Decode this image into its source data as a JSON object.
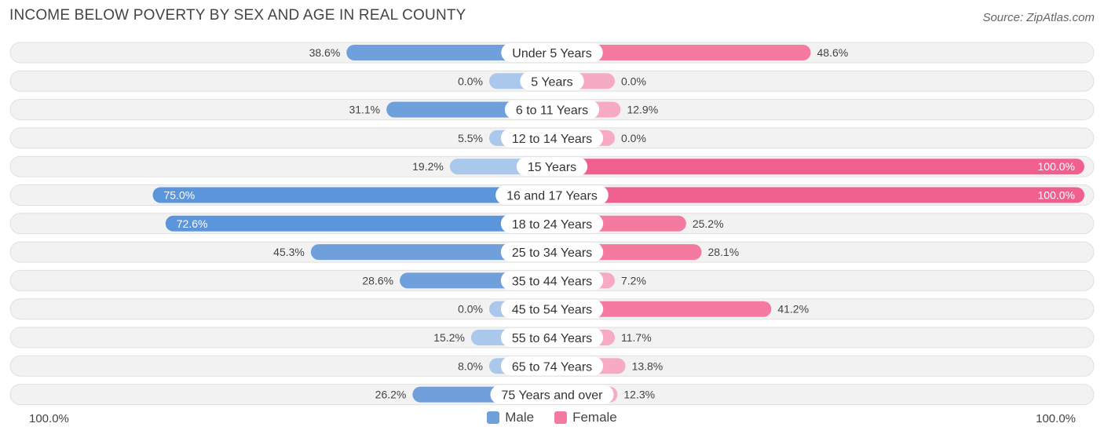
{
  "title": "INCOME BELOW POVERTY BY SEX AND AGE IN REAL COUNTY",
  "source": "Source: ZipAtlas.com",
  "colors": {
    "male": "#6fa0dc",
    "male_light": "#a9c8ec",
    "male_strong": "#5b95dc",
    "female": "#f57aa0",
    "female_light": "#f7aac4",
    "female_strong": "#f0608f",
    "row_bg": "#f2f2f2",
    "row_border": "#e0e0e0"
  },
  "legend": {
    "male": "Male",
    "female": "Female"
  },
  "axis": {
    "left": "100.0%",
    "right": "100.0%"
  },
  "chart_data": {
    "type": "bar",
    "orientation": "horizontal-diverging",
    "title": "INCOME BELOW POVERTY BY SEX AND AGE IN REAL COUNTY",
    "categories": [
      "Under 5 Years",
      "5 Years",
      "6 to 11 Years",
      "12 to 14 Years",
      "15 Years",
      "16 and 17 Years",
      "18 to 24 Years",
      "25 to 34 Years",
      "35 to 44 Years",
      "45 to 54 Years",
      "55 to 64 Years",
      "65 to 74 Years",
      "75 Years and over"
    ],
    "series": [
      {
        "name": "Male",
        "values": [
          38.6,
          0.0,
          31.1,
          5.5,
          19.2,
          75.0,
          72.6,
          45.3,
          28.6,
          0.0,
          15.2,
          8.0,
          26.2
        ],
        "labels": [
          "38.6%",
          "0.0%",
          "31.1%",
          "5.5%",
          "19.2%",
          "75.0%",
          "72.6%",
          "45.3%",
          "28.6%",
          "0.0%",
          "15.2%",
          "8.0%",
          "26.2%"
        ]
      },
      {
        "name": "Female",
        "values": [
          48.6,
          0.0,
          12.9,
          0.0,
          100.0,
          100.0,
          25.2,
          28.1,
          7.2,
          41.2,
          11.7,
          13.8,
          12.3
        ],
        "labels": [
          "48.6%",
          "0.0%",
          "12.9%",
          "0.0%",
          "100.0%",
          "100.0%",
          "25.2%",
          "28.1%",
          "7.2%",
          "41.2%",
          "11.7%",
          "13.8%",
          "12.3%"
        ]
      }
    ],
    "xlim": [
      -100,
      100
    ],
    "xlabel_left": "100.0%",
    "xlabel_right": "100.0%",
    "legend_position": "bottom-center"
  }
}
